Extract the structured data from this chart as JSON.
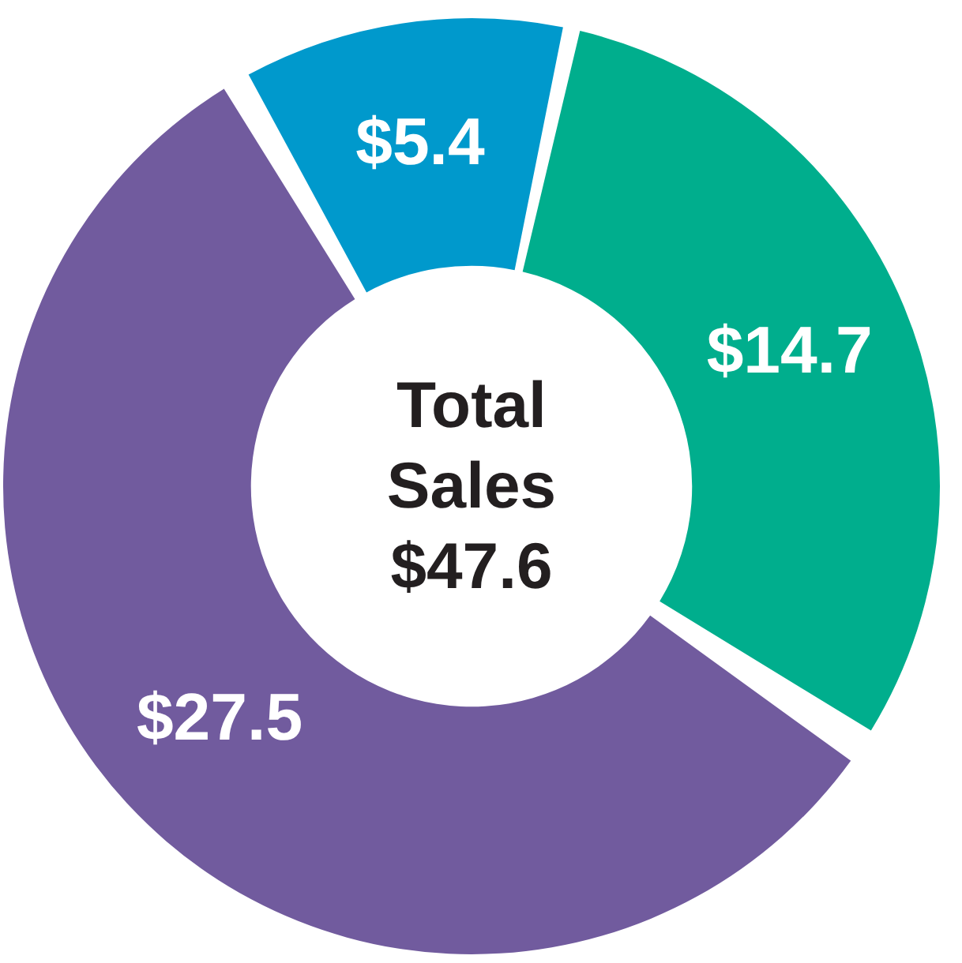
{
  "chart_data": {
    "type": "donut",
    "categories": [
      null,
      null,
      null
    ],
    "values": [
      5.4,
      14.7,
      27.5
    ],
    "colors": [
      "#0099cc",
      "#00ae8d",
      "#715b9e"
    ],
    "value_labels": [
      "$5.4",
      "$14.7",
      "$27.5"
    ],
    "annotations": [
      "Total Sales $47.6"
    ]
  }
}
